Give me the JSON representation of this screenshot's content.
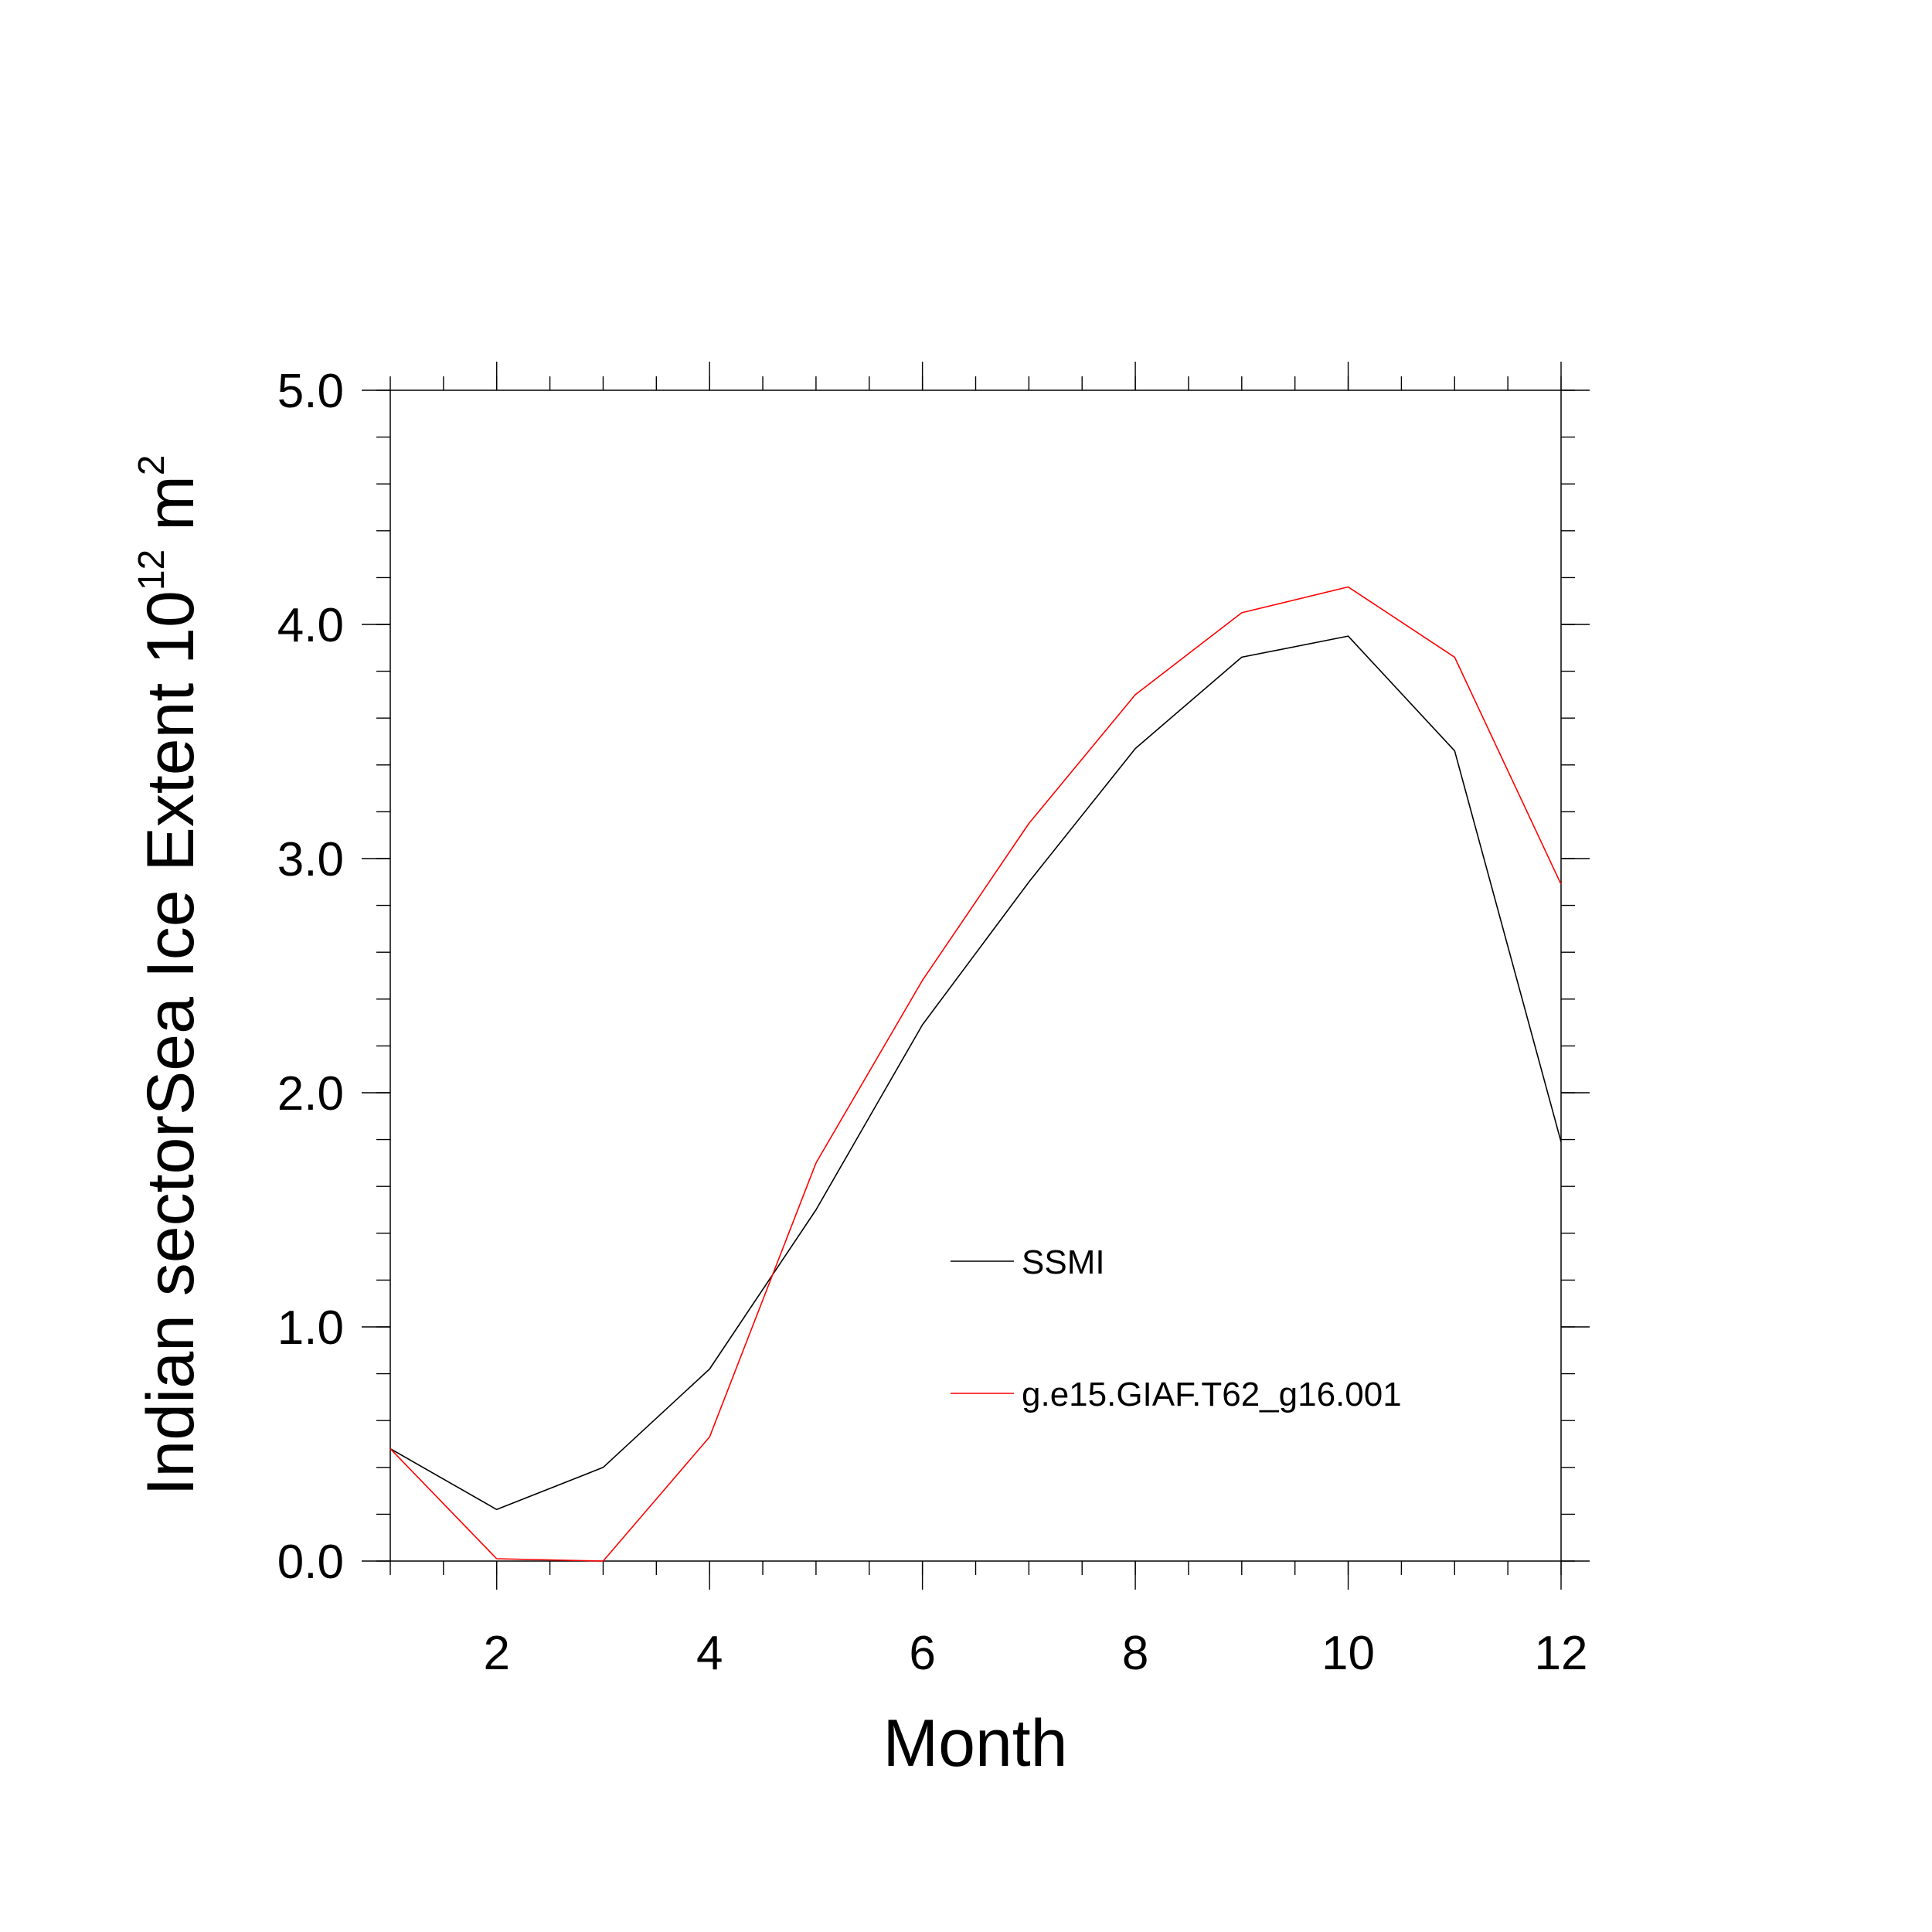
{
  "chart_data": {
    "type": "line",
    "title": "",
    "xlabel": "Month",
    "ylabel": {
      "main": "Indian sectorSea Ice Extent 10",
      "exponent": "12",
      "unit": " m",
      "unit_exponent": "2"
    },
    "xlim": [
      1,
      12
    ],
    "ylim": [
      0,
      5
    ],
    "x": [
      1,
      2,
      3,
      4,
      5,
      6,
      7,
      8,
      9,
      10,
      11,
      12
    ],
    "xticks": [
      2,
      4,
      6,
      8,
      10,
      12
    ],
    "xtick_labels": [
      "2",
      "4",
      "6",
      "8",
      "10",
      "12"
    ],
    "yticks": [
      0,
      1,
      2,
      3,
      4,
      5
    ],
    "ytick_labels": [
      "0.0",
      "1.0",
      "2.0",
      "3.0",
      "4.0",
      "5.0"
    ],
    "grid": false,
    "legend_position": "center-right",
    "series": [
      {
        "name": "SSMI",
        "color": "#000000",
        "values": [
          0.48,
          0.22,
          0.4,
          0.82,
          1.5,
          2.29,
          2.9,
          3.47,
          3.86,
          3.95,
          3.46,
          1.79
        ]
      },
      {
        "name": "g.e15.GIAF.T62_g16.001",
        "color": "#ff0000",
        "values": [
          0.48,
          0.01,
          0.0,
          0.53,
          1.7,
          2.48,
          3.15,
          3.7,
          4.05,
          4.16,
          3.86,
          2.89
        ]
      }
    ]
  }
}
